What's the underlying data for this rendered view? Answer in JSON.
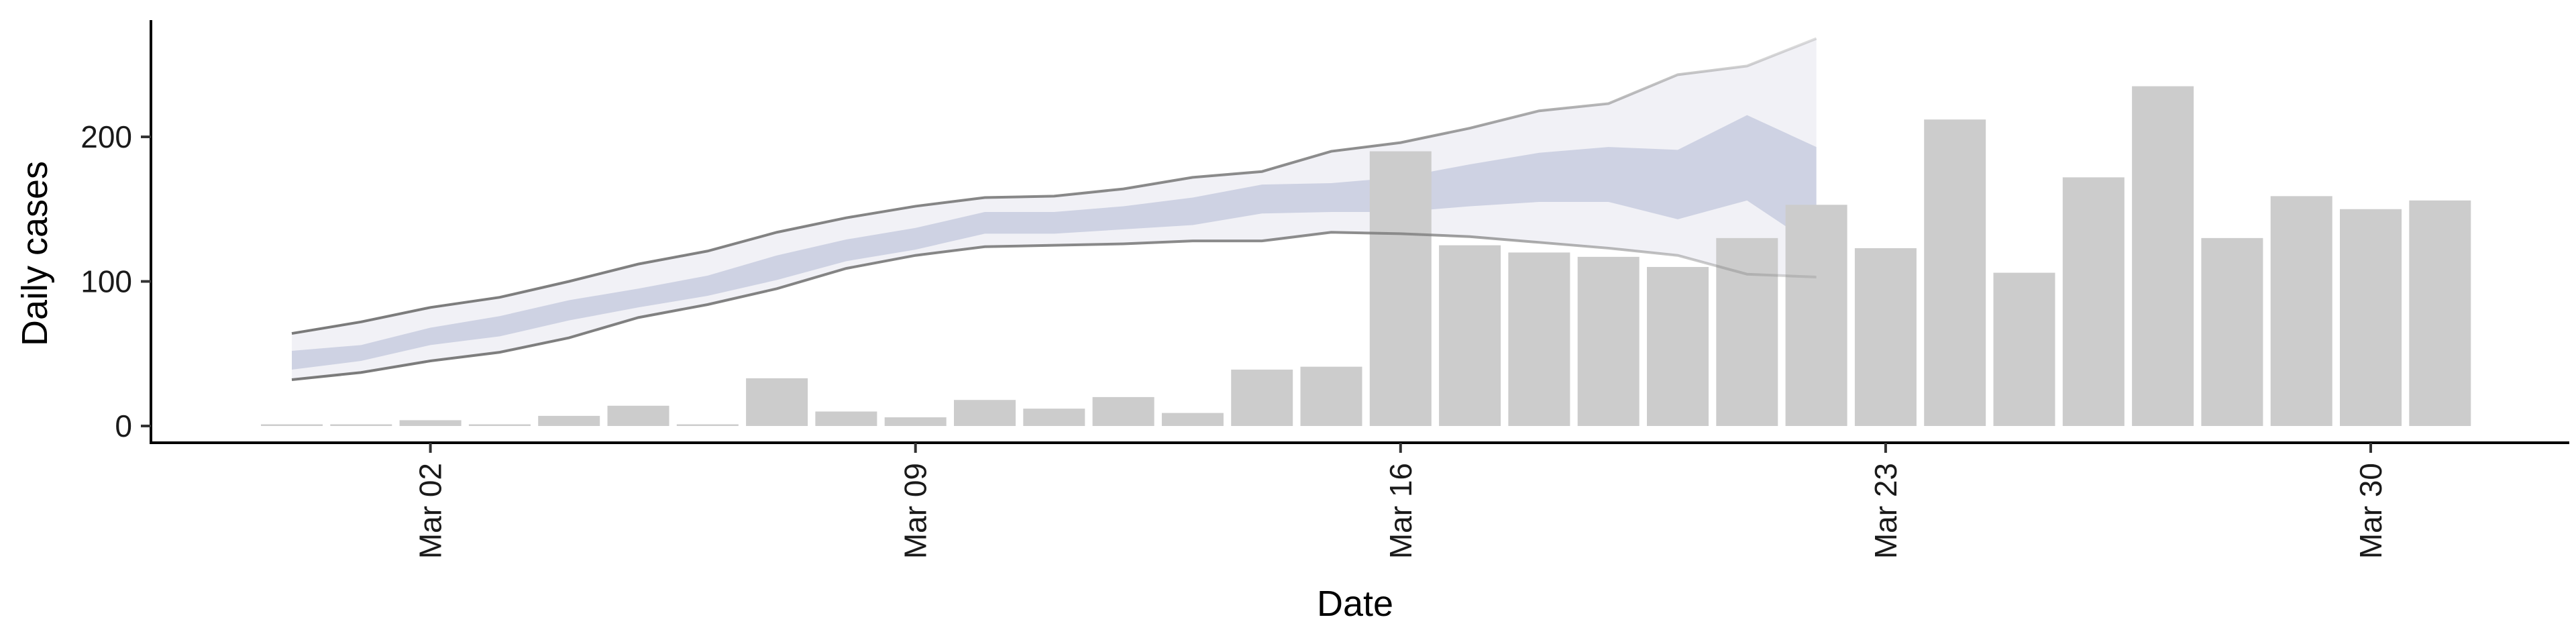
{
  "chart_data": {
    "type": "bar",
    "title": "",
    "xlabel": "Date",
    "ylabel": "Daily cases",
    "ylim": [
      -12,
      280
    ],
    "grid": false,
    "legend": "none",
    "x_ticks": [
      "Mar 02",
      "Mar 09",
      "Mar 16",
      "Mar 23",
      "Mar 30"
    ],
    "y_ticks": [
      "0",
      "100",
      "200"
    ],
    "y_tick_values": [
      0,
      100,
      200
    ],
    "bars": {
      "color": "#cccccc",
      "dates": [
        "2020-02-29",
        "2020-03-01",
        "2020-03-02",
        "2020-03-03",
        "2020-03-04",
        "2020-03-05",
        "2020-03-06",
        "2020-03-07",
        "2020-03-08",
        "2020-03-09",
        "2020-03-10",
        "2020-03-11",
        "2020-03-12",
        "2020-03-13",
        "2020-03-14",
        "2020-03-15",
        "2020-03-16",
        "2020-03-17",
        "2020-03-18",
        "2020-03-19",
        "2020-03-20",
        "2020-03-21",
        "2020-03-22",
        "2020-03-23",
        "2020-03-24",
        "2020-03-25",
        "2020-03-26",
        "2020-03-27",
        "2020-03-28",
        "2020-03-29",
        "2020-03-30",
        "2020-03-31"
      ],
      "values": [
        1,
        0,
        4,
        0,
        7,
        14,
        0,
        33,
        10,
        6,
        18,
        12,
        20,
        9,
        39,
        41,
        190,
        125,
        120,
        117,
        110,
        130,
        153,
        123,
        212,
        106,
        172,
        235,
        130,
        159,
        150,
        156
      ]
    },
    "forecast": {
      "colors": {
        "outer_band": "#eeeff5",
        "inner_band": "#c8cddf",
        "outline": "#7a7a7a"
      },
      "dates": [
        "2020-02-29",
        "2020-03-01",
        "2020-03-02",
        "2020-03-03",
        "2020-03-04",
        "2020-03-05",
        "2020-03-06",
        "2020-03-07",
        "2020-03-08",
        "2020-03-09",
        "2020-03-10",
        "2020-03-11",
        "2020-03-12",
        "2020-03-13",
        "2020-03-14",
        "2020-03-15",
        "2020-03-16",
        "2020-03-17",
        "2020-03-18",
        "2020-03-19",
        "2020-03-20",
        "2020-03-21",
        "2020-03-22"
      ],
      "outer_lower": [
        32,
        37,
        45,
        51,
        61,
        75,
        84,
        95,
        109,
        118,
        124,
        125,
        126,
        128,
        128,
        134,
        133,
        131,
        127,
        123,
        118,
        105,
        103
      ],
      "outer_upper": [
        64,
        72,
        82,
        89,
        100,
        112,
        121,
        134,
        144,
        152,
        158,
        159,
        164,
        172,
        176,
        190,
        196,
        206,
        218,
        223,
        243,
        249,
        268
      ],
      "inner_lower": [
        39,
        45,
        56,
        62,
        73,
        82,
        90,
        101,
        114,
        122,
        133,
        133,
        136,
        139,
        147,
        148,
        148,
        152,
        155,
        155,
        143,
        156,
        124
      ],
      "inner_upper": [
        52,
        56,
        68,
        76,
        87,
        95,
        104,
        118,
        129,
        137,
        148,
        148,
        152,
        158,
        167,
        168,
        172,
        181,
        189,
        193,
        191,
        215,
        193
      ]
    }
  }
}
